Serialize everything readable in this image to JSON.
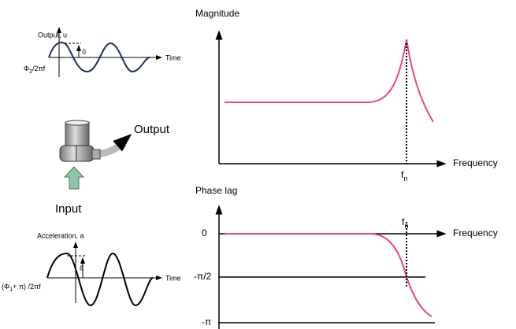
{
  "output_wave": {
    "label": "Output, u",
    "axis": "Time",
    "amplitude": "û",
    "phase": {
      "symbol": "Φ",
      "sub": "2",
      "rest": "/2πf"
    }
  },
  "accelerometer": {
    "output": "Output",
    "input": "Input"
  },
  "input_wave": {
    "label": "Acceleration, a",
    "axis": "Time",
    "amplitude": "â",
    "phase": {
      "open": "(Φ",
      "sub": "1",
      "rest": "+ π) /2πf"
    }
  },
  "magnitude_plot": {
    "title": "Magnitude",
    "x_label": "Frequency",
    "marker": {
      "main": "f",
      "sub": "n"
    }
  },
  "phase_plot": {
    "title": "Phase lag",
    "x_label": "Frequency",
    "marker": {
      "main": "f",
      "sub": "n"
    },
    "levels": [
      "0",
      "-π/2",
      "-π"
    ]
  }
}
